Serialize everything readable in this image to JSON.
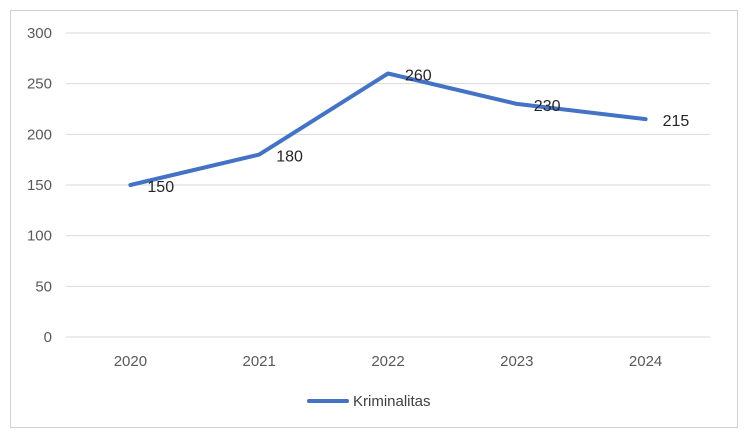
{
  "chart_data": {
    "type": "line",
    "title": "",
    "xlabel": "",
    "ylabel": "",
    "categories": [
      "2020",
      "2021",
      "2022",
      "2023",
      "2024"
    ],
    "series": [
      {
        "name": "Kriminalitas",
        "values": [
          150,
          180,
          260,
          230,
          215
        ],
        "color": "#4472c4"
      }
    ],
    "ylim": [
      0,
      300
    ],
    "yticks": [
      0,
      50,
      100,
      150,
      200,
      250,
      300
    ],
    "grid": true,
    "legend_position": "bottom",
    "data_labels": [
      "150",
      "180",
      "260",
      "230",
      "215"
    ]
  }
}
